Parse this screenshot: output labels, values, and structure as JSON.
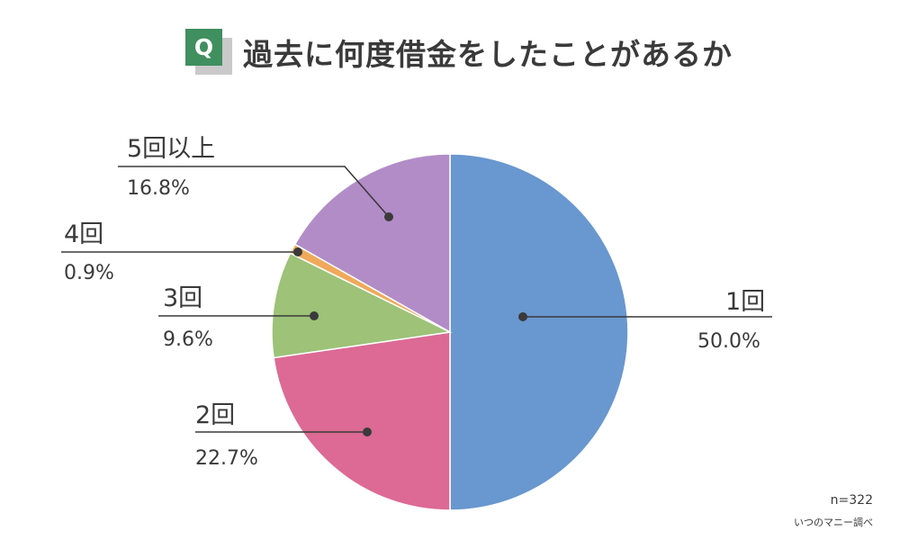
{
  "question_badge": "Q",
  "title": "過去に何度借金をしたことがあるか",
  "sample_size": "n=322",
  "source": "いつのマニー調べ",
  "chart_data": {
    "type": "pie",
    "title": "過去に何度借金をしたことがあるか",
    "slices": [
      {
        "label": "1回",
        "value": 50.0,
        "display": "50.0%",
        "color": "#6997cf"
      },
      {
        "label": "2回",
        "value": 22.7,
        "display": "22.7%",
        "color": "#dc6a94"
      },
      {
        "label": "3回",
        "value": 9.6,
        "display": "9.6%",
        "color": "#9dc278"
      },
      {
        "label": "4回",
        "value": 0.9,
        "display": "0.9%",
        "color": "#f0a95a"
      },
      {
        "label": "5回以上",
        "value": 16.8,
        "display": "16.8%",
        "color": "#b28cc7"
      }
    ],
    "direction": "clockwise from 12 o'clock",
    "legend": "none"
  }
}
